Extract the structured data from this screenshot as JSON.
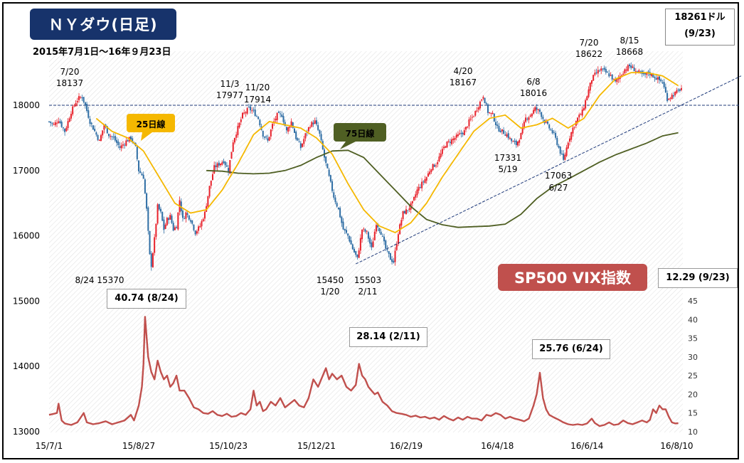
{
  "title": "ＮＹダウ(日足)",
  "subtitle": "2015年7月1日～16年９月23日",
  "latest_price": {
    "value": "18261ドル",
    "date": "(9/23)"
  },
  "vix_title": "SP500 VIX指数",
  "vix_latest": "12.29 (9/23)",
  "ma25_label": "25日線",
  "ma75_label": "75日線",
  "callouts": {
    "vix_aug": "40.74 (8/24)",
    "vix_feb": "28.14 (2/11)",
    "vix_jun": "25.76 (6/24)"
  },
  "annotations": [
    {
      "date": "7/20",
      "value": "18137"
    },
    {
      "date": "8/24",
      "value": "15370"
    },
    {
      "date": "11/3",
      "value": "17977"
    },
    {
      "date": "11/20",
      "value": "17914"
    },
    {
      "date": "1/20",
      "value": "15450"
    },
    {
      "date": "2/11",
      "value": "15503"
    },
    {
      "date": "4/20",
      "value": "18167"
    },
    {
      "date": "5/19",
      "value": "17331"
    },
    {
      "date": "6/8",
      "value": "18016"
    },
    {
      "date": "6/27",
      "value": "17063"
    },
    {
      "date": "7/20",
      "value": "18622"
    },
    {
      "date": "8/15",
      "value": "18668"
    }
  ],
  "colors": {
    "up": "#e8212b",
    "down": "#2e6da4",
    "ma25": "#f5b800",
    "ma75": "#4f5f23",
    "vix": "#c0504d",
    "title_bg": "#17336b",
    "trend": "#1f3a7a"
  },
  "chart_data": {
    "type": "candlestick",
    "x_tick_labels": [
      "15/7/1",
      "15/8/27",
      "15/10/23",
      "15/12/21",
      "16/2/19",
      "16/4/18",
      "16/6/14",
      "16/8/10"
    ],
    "y_ticks_left": [
      13000,
      14000,
      15000,
      16000,
      17000,
      18000
    ],
    "y_ticks_right": [
      10,
      15,
      20,
      25,
      30,
      35,
      40,
      45
    ],
    "ylim_left": [
      13000,
      18800
    ],
    "ylim_right": [
      10,
      45
    ],
    "reference_line": 18000,
    "dow_close_series": [
      [
        0,
        17750
      ],
      [
        3,
        17700
      ],
      [
        6,
        17780
      ],
      [
        10,
        17600
      ],
      [
        14,
        17900
      ],
      [
        17,
        18050
      ],
      [
        19,
        18110
      ],
      [
        21,
        18130
      ],
      [
        23,
        18000
      ],
      [
        26,
        17750
      ],
      [
        29,
        17600
      ],
      [
        32,
        17450
      ],
      [
        35,
        17700
      ],
      [
        38,
        17550
      ],
      [
        41,
        17500
      ],
      [
        45,
        17350
      ],
      [
        49,
        17450
      ],
      [
        52,
        17500
      ],
      [
        55,
        17350
      ],
      [
        57,
        17000
      ],
      [
        60,
        16900
      ],
      [
        62,
        16400
      ],
      [
        64,
        15700
      ],
      [
        65,
        15550
      ],
      [
        67,
        15950
      ],
      [
        69,
        16450
      ],
      [
        71,
        16350
      ],
      [
        73,
        16100
      ],
      [
        75,
        16250
      ],
      [
        77,
        16300
      ],
      [
        79,
        16100
      ],
      [
        81,
        16150
      ],
      [
        83,
        16550
      ],
      [
        85,
        16250
      ],
      [
        87,
        16350
      ],
      [
        90,
        16250
      ],
      [
        93,
        16050
      ],
      [
        96,
        16150
      ],
      [
        99,
        16350
      ],
      [
        102,
        16750
      ],
      [
        105,
        17050
      ],
      [
        108,
        17100
      ],
      [
        111,
        17150
      ],
      [
        114,
        17000
      ],
      [
        117,
        17450
      ],
      [
        120,
        17650
      ],
      [
        123,
        17850
      ],
      [
        125,
        17900
      ],
      [
        127,
        17950
      ],
      [
        130,
        17900
      ],
      [
        133,
        17800
      ],
      [
        136,
        17550
      ],
      [
        139,
        17450
      ],
      [
        142,
        17700
      ],
      [
        145,
        17850
      ],
      [
        148,
        17850
      ],
      [
        151,
        17600
      ],
      [
        154,
        17750
      ],
      [
        157,
        17500
      ],
      [
        160,
        17350
      ],
      [
        163,
        17550
      ],
      [
        166,
        17700
      ],
      [
        169,
        17750
      ],
      [
        172,
        17550
      ],
      [
        175,
        17200
      ],
      [
        178,
        16900
      ],
      [
        181,
        16600
      ],
      [
        184,
        16400
      ],
      [
        187,
        16100
      ],
      [
        190,
        16000
      ],
      [
        193,
        15800
      ],
      [
        196,
        15650
      ],
      [
        199,
        16100
      ],
      [
        202,
        16050
      ],
      [
        205,
        15800
      ],
      [
        208,
        16200
      ],
      [
        211,
        16050
      ],
      [
        214,
        15800
      ],
      [
        217,
        15650
      ],
      [
        219,
        15600
      ],
      [
        222,
        16050
      ],
      [
        225,
        16350
      ],
      [
        228,
        16400
      ],
      [
        231,
        16500
      ],
      [
        234,
        16700
      ],
      [
        237,
        16800
      ],
      [
        240,
        16900
      ],
      [
        243,
        17050
      ],
      [
        246,
        17100
      ],
      [
        249,
        17250
      ],
      [
        252,
        17400
      ],
      [
        255,
        17450
      ],
      [
        258,
        17500
      ],
      [
        261,
        17550
      ],
      [
        264,
        17600
      ],
      [
        267,
        17750
      ],
      [
        270,
        17850
      ],
      [
        273,
        18000
      ],
      [
        276,
        18150
      ],
      [
        279,
        17900
      ],
      [
        282,
        17850
      ],
      [
        285,
        17650
      ],
      [
        288,
        17600
      ],
      [
        291,
        17550
      ],
      [
        294,
        17450
      ],
      [
        297,
        17400
      ],
      [
        300,
        17550
      ],
      [
        303,
        17800
      ],
      [
        306,
        17850
      ],
      [
        309,
        17950
      ],
      [
        312,
        17900
      ],
      [
        315,
        17750
      ],
      [
        318,
        17650
      ],
      [
        321,
        17550
      ],
      [
        324,
        17350
      ],
      [
        327,
        17150
      ],
      [
        330,
        17450
      ],
      [
        333,
        17650
      ],
      [
        336,
        17800
      ],
      [
        339,
        17900
      ],
      [
        342,
        18150
      ],
      [
        345,
        18400
      ],
      [
        348,
        18500
      ],
      [
        351,
        18550
      ],
      [
        354,
        18500
      ],
      [
        357,
        18450
      ],
      [
        360,
        18350
      ],
      [
        363,
        18450
      ],
      [
        366,
        18550
      ],
      [
        369,
        18600
      ],
      [
        372,
        18550
      ],
      [
        375,
        18500
      ],
      [
        378,
        18450
      ],
      [
        381,
        18500
      ],
      [
        384,
        18450
      ],
      [
        387,
        18400
      ],
      [
        390,
        18350
      ],
      [
        393,
        18100
      ],
      [
        396,
        18150
      ],
      [
        399,
        18200
      ],
      [
        402,
        18261
      ]
    ],
    "ma25_series": [
      [
        30,
        17800
      ],
      [
        40,
        17600
      ],
      [
        50,
        17500
      ],
      [
        60,
        17300
      ],
      [
        70,
        16900
      ],
      [
        80,
        16500
      ],
      [
        90,
        16350
      ],
      [
        100,
        16400
      ],
      [
        110,
        16700
      ],
      [
        120,
        17100
      ],
      [
        130,
        17550
      ],
      [
        140,
        17750
      ],
      [
        150,
        17700
      ],
      [
        160,
        17650
      ],
      [
        170,
        17500
      ],
      [
        180,
        17250
      ],
      [
        190,
        16800
      ],
      [
        200,
        16400
      ],
      [
        210,
        16150
      ],
      [
        220,
        16050
      ],
      [
        230,
        16200
      ],
      [
        240,
        16500
      ],
      [
        250,
        16900
      ],
      [
        260,
        17250
      ],
      [
        270,
        17600
      ],
      [
        280,
        17800
      ],
      [
        290,
        17850
      ],
      [
        300,
        17650
      ],
      [
        310,
        17700
      ],
      [
        320,
        17800
      ],
      [
        330,
        17650
      ],
      [
        340,
        17800
      ],
      [
        350,
        18150
      ],
      [
        360,
        18400
      ],
      [
        370,
        18500
      ],
      [
        380,
        18500
      ],
      [
        390,
        18450
      ],
      [
        400,
        18300
      ]
    ],
    "ma75_series": [
      [
        100,
        17000
      ],
      [
        110,
        16990
      ],
      [
        120,
        16960
      ],
      [
        130,
        16950
      ],
      [
        140,
        16960
      ],
      [
        150,
        17000
      ],
      [
        160,
        17080
      ],
      [
        170,
        17200
      ],
      [
        180,
        17300
      ],
      [
        190,
        17310
      ],
      [
        200,
        17200
      ],
      [
        210,
        16950
      ],
      [
        220,
        16700
      ],
      [
        230,
        16450
      ],
      [
        240,
        16250
      ],
      [
        250,
        16170
      ],
      [
        260,
        16130
      ],
      [
        270,
        16140
      ],
      [
        280,
        16150
      ],
      [
        290,
        16180
      ],
      [
        300,
        16330
      ],
      [
        310,
        16570
      ],
      [
        320,
        16750
      ],
      [
        330,
        16870
      ],
      [
        340,
        17000
      ],
      [
        350,
        17130
      ],
      [
        360,
        17240
      ],
      [
        370,
        17330
      ],
      [
        380,
        17420
      ],
      [
        390,
        17530
      ],
      [
        400,
        17580
      ]
    ],
    "trend_line": [
      [
        195,
        15570
      ],
      [
        440,
        18450
      ]
    ],
    "vix_series": [
      [
        0,
        14.5
      ],
      [
        3,
        14.8
      ],
      [
        5,
        15
      ],
      [
        6,
        17.5
      ],
      [
        8,
        13
      ],
      [
        10,
        12.2
      ],
      [
        14,
        11.8
      ],
      [
        18,
        12.5
      ],
      [
        22,
        15
      ],
      [
        24,
        12.5
      ],
      [
        28,
        12
      ],
      [
        32,
        12.3
      ],
      [
        36,
        12.8
      ],
      [
        40,
        12
      ],
      [
        44,
        12.5
      ],
      [
        48,
        13
      ],
      [
        52,
        14.5
      ],
      [
        54,
        13
      ],
      [
        57,
        17
      ],
      [
        59,
        22
      ],
      [
        60,
        28
      ],
      [
        61,
        40.74
      ],
      [
        63,
        30
      ],
      [
        65,
        26
      ],
      [
        67,
        24
      ],
      [
        69,
        29
      ],
      [
        71,
        26
      ],
      [
        73,
        24
      ],
      [
        75,
        25
      ],
      [
        77,
        22
      ],
      [
        79,
        23
      ],
      [
        81,
        25
      ],
      [
        83,
        21
      ],
      [
        86,
        21
      ],
      [
        89,
        19
      ],
      [
        92,
        16.5
      ],
      [
        95,
        16
      ],
      [
        98,
        15
      ],
      [
        101,
        14.8
      ],
      [
        104,
        15.5
      ],
      [
        107,
        14.5
      ],
      [
        110,
        14.2
      ],
      [
        113,
        14.8
      ],
      [
        116,
        14
      ],
      [
        119,
        14.2
      ],
      [
        122,
        15
      ],
      [
        125,
        14.5
      ],
      [
        128,
        16
      ],
      [
        130,
        21
      ],
      [
        132,
        17
      ],
      [
        134,
        18
      ],
      [
        136,
        15.5
      ],
      [
        138,
        16
      ],
      [
        141,
        18
      ],
      [
        144,
        17
      ],
      [
        147,
        19
      ],
      [
        150,
        16.5
      ],
      [
        153,
        17.5
      ],
      [
        156,
        18.5
      ],
      [
        159,
        17
      ],
      [
        162,
        16.5
      ],
      [
        165,
        19
      ],
      [
        168,
        24
      ],
      [
        171,
        22
      ],
      [
        174,
        25
      ],
      [
        176,
        27
      ],
      [
        178,
        24
      ],
      [
        180,
        25.5
      ],
      [
        183,
        24
      ],
      [
        186,
        25
      ],
      [
        189,
        22
      ],
      [
        192,
        21
      ],
      [
        195,
        22.5
      ],
      [
        197,
        28.14
      ],
      [
        199,
        25
      ],
      [
        201,
        24
      ],
      [
        203,
        22
      ],
      [
        205,
        21
      ],
      [
        207,
        20
      ],
      [
        209,
        20.5
      ],
      [
        212,
        18
      ],
      [
        215,
        17
      ],
      [
        218,
        15.5
      ],
      [
        221,
        15
      ],
      [
        224,
        14.8
      ],
      [
        227,
        14.5
      ],
      [
        230,
        14
      ],
      [
        233,
        14.3
      ],
      [
        236,
        13.8
      ],
      [
        239,
        14
      ],
      [
        242,
        13.5
      ],
      [
        245,
        13.8
      ],
      [
        248,
        13.2
      ],
      [
        251,
        14.2
      ],
      [
        254,
        13.5
      ],
      [
        257,
        13
      ],
      [
        260,
        13.8
      ],
      [
        263,
        13.2
      ],
      [
        266,
        14
      ],
      [
        269,
        13.5
      ],
      [
        272,
        13.5
      ],
      [
        275,
        13
      ],
      [
        278,
        14.5
      ],
      [
        281,
        14.2
      ],
      [
        284,
        15
      ],
      [
        287,
        14.5
      ],
      [
        290,
        13.5
      ],
      [
        293,
        14
      ],
      [
        296,
        13.5
      ],
      [
        299,
        13.2
      ],
      [
        302,
        12.8
      ],
      [
        305,
        13.5
      ],
      [
        308,
        17
      ],
      [
        310,
        20
      ],
      [
        312,
        25.76
      ],
      [
        314,
        19
      ],
      [
        316,
        16
      ],
      [
        318,
        14.5
      ],
      [
        321,
        13.8
      ],
      [
        324,
        13.2
      ],
      [
        327,
        12.5
      ],
      [
        330,
        12
      ],
      [
        333,
        11.8
      ],
      [
        336,
        12
      ],
      [
        339,
        11.8
      ],
      [
        342,
        12.2
      ],
      [
        345,
        13.5
      ],
      [
        347,
        12.3
      ],
      [
        350,
        11.5
      ],
      [
        353,
        11.8
      ],
      [
        356,
        12.5
      ],
      [
        359,
        11.8
      ],
      [
        362,
        12
      ],
      [
        365,
        13
      ],
      [
        368,
        12.3
      ],
      [
        371,
        12
      ],
      [
        374,
        12.5
      ],
      [
        377,
        13
      ],
      [
        380,
        12.5
      ],
      [
        382,
        13.2
      ],
      [
        384,
        16
      ],
      [
        386,
        15
      ],
      [
        388,
        17
      ],
      [
        390,
        16
      ],
      [
        392,
        16
      ],
      [
        394,
        14
      ],
      [
        396,
        12.5
      ],
      [
        398,
        12.2
      ],
      [
        400,
        12.29
      ]
    ]
  }
}
